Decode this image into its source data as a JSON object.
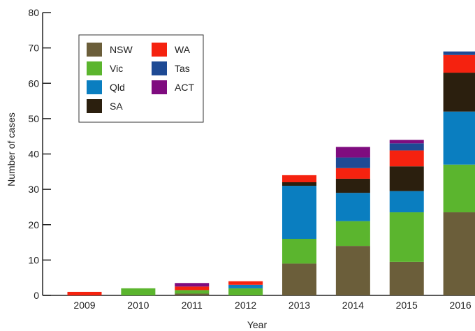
{
  "chart_data": {
    "type": "bar",
    "stacked": true,
    "title": "",
    "xlabel": "Year",
    "ylabel": "Number of cases",
    "ylim": [
      0,
      80
    ],
    "yticks": [
      0,
      10,
      20,
      30,
      40,
      50,
      60,
      70,
      80
    ],
    "grid": false,
    "legend_position": "top-left",
    "categories": [
      "2009",
      "2010",
      "2011",
      "2012",
      "2013",
      "2014",
      "2015",
      "2016"
    ],
    "series": [
      {
        "name": "NSW",
        "color": "#6B5E3A",
        "values": [
          0,
          0,
          0.5,
          0,
          9,
          14,
          9.5,
          23.5
        ]
      },
      {
        "name": "Vic",
        "color": "#5BB52E",
        "values": [
          0,
          2,
          1,
          2,
          7,
          7,
          14,
          13.5
        ]
      },
      {
        "name": "Qld",
        "color": "#0A7EC0",
        "values": [
          0,
          0,
          0,
          1,
          15,
          8,
          6,
          15
        ]
      },
      {
        "name": "SA",
        "color": "#2B1F0E",
        "values": [
          0,
          0,
          0,
          0,
          1,
          4,
          7,
          11
        ]
      },
      {
        "name": "WA",
        "color": "#F5220F",
        "values": [
          1,
          0,
          1,
          1,
          2,
          3,
          4.5,
          5
        ]
      },
      {
        "name": "Tas",
        "color": "#1E4A94",
        "values": [
          0,
          0,
          0,
          0,
          0,
          3,
          2,
          1
        ]
      },
      {
        "name": "ACT",
        "color": "#7F0C7F",
        "values": [
          0,
          0,
          1,
          0,
          0,
          3,
          1,
          0
        ]
      }
    ]
  }
}
